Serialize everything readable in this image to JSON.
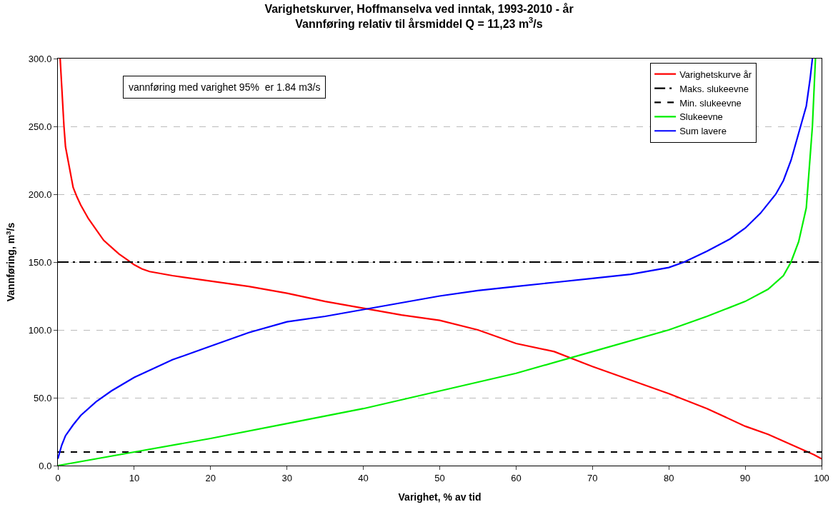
{
  "chart_data": {
    "type": "line",
    "title": "Varighetskurver, Hoffmanselva ved inntak, 1993-2010 - år\nVannføring relativ til årsmiddel Q = 11,23 m$^{3}$/s",
    "xlabel": "Varighet, % av tid",
    "ylabel": "Vannføring, m$^{3}$/s",
    "annotations": [
      "vannføring med varighet 95%  er 1.84 m3/s"
    ],
    "xlim": [
      0,
      100
    ],
    "xticks": [
      0,
      10,
      20,
      30,
      40,
      50,
      60,
      70,
      80,
      90,
      100
    ],
    "ylim": [
      0,
      300
    ],
    "yticks": [
      {
        "value": 0,
        "label": "0.0"
      },
      {
        "value": 50,
        "label": "50.0"
      },
      {
        "value": 100,
        "label": "100.0"
      },
      {
        "value": 150,
        "label": "150.0"
      },
      {
        "value": 200,
        "label": "200.0"
      },
      {
        "value": 250,
        "label": "250.0"
      },
      {
        "value": 300,
        "label": "300.0"
      }
    ],
    "grid": "y",
    "legend": "top right",
    "marker": "none",
    "series": [
      {
        "name": "Varighetskurve år",
        "color": "#ff0000",
        "line_style": "solid",
        "x": [
          0.3,
          0.5,
          0.8,
          1.0,
          1.5,
          2,
          2.5,
          3,
          4,
          5,
          6,
          7,
          8,
          9,
          10,
          11,
          12,
          15,
          20,
          25,
          30,
          35,
          40,
          45,
          50,
          55,
          60,
          65,
          70,
          75,
          80,
          85,
          90,
          93,
          95,
          97,
          99,
          100
        ],
        "values": [
          300,
          280,
          250,
          235,
          220,
          205,
          198,
          192,
          182,
          174,
          166,
          161,
          156,
          152,
          148,
          145,
          143,
          140,
          136,
          132,
          127,
          121,
          116,
          111,
          107,
          100,
          90,
          84,
          73,
          63,
          53,
          42,
          29,
          23,
          18,
          13,
          8,
          5
        ]
      },
      {
        "name": "Maks. slukeevne",
        "color": "#000000",
        "line_style": "dashdot",
        "x": [
          0,
          100
        ],
        "values": [
          150,
          150
        ]
      },
      {
        "name": "Min. slukeevne",
        "color": "#000000",
        "line_style": "dashed",
        "x": [
          0,
          100
        ],
        "values": [
          10,
          10
        ]
      },
      {
        "name": "Slukeevne",
        "color": "#00ee00",
        "line_style": "solid",
        "x": [
          0,
          10,
          20,
          30,
          40,
          50,
          60,
          70,
          80,
          85,
          90,
          93,
          95,
          96,
          97,
          98,
          98.8,
          99.2
        ],
        "values": [
          0,
          10,
          20,
          31,
          42,
          55,
          68,
          84,
          100,
          110,
          121,
          130,
          140,
          150,
          165,
          190,
          250,
          300
        ]
      },
      {
        "name": "Sum lavere",
        "color": "#0000ff",
        "line_style": "solid",
        "x": [
          0,
          0.5,
          1,
          2,
          3,
          5,
          7,
          10,
          15,
          20,
          25,
          30,
          35,
          40,
          45,
          50,
          55,
          60,
          65,
          70,
          75,
          80,
          82,
          85,
          88,
          90,
          92,
          94,
          95,
          96,
          97,
          98,
          98.5,
          98.8
        ],
        "values": [
          5,
          15,
          22,
          30,
          37,
          47,
          55,
          65,
          78,
          88,
          98,
          106,
          110,
          115,
          120,
          125,
          129,
          132,
          135,
          138,
          141,
          146,
          150,
          158,
          167,
          175,
          186,
          200,
          210,
          225,
          245,
          265,
          285,
          300
        ]
      }
    ]
  }
}
